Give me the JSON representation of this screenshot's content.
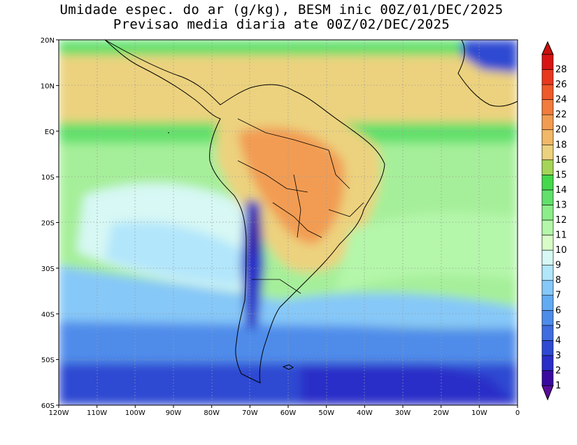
{
  "title": {
    "line1": "Umidade espec. do ar (g/kg), BESM inic 00Z/01/DEC/2025",
    "line2": "Previsao media diaria ate 00Z/02/DEC/2025"
  },
  "map": {
    "lon_labels": [
      "120W",
      "110W",
      "100W",
      "90W",
      "80W",
      "70W",
      "60W",
      "50W",
      "40W",
      "30W",
      "20W",
      "10W",
      "0"
    ],
    "lat_labels": [
      "20N",
      "10N",
      "EQ",
      "10S",
      "20S",
      "30S",
      "40S",
      "50S",
      "60S"
    ],
    "lon_range": [
      -120,
      0
    ],
    "lat_range": [
      -60,
      20
    ],
    "grid": "dotted"
  },
  "colorbar": {
    "labels": [
      "1",
      "2",
      "3",
      "4",
      "5",
      "6",
      "7",
      "8",
      "9",
      "10",
      "11",
      "12",
      "13",
      "14",
      "15",
      "16",
      "18",
      "20",
      "22",
      "24",
      "26",
      "28"
    ],
    "colors": [
      "#3a0aa0",
      "#2a2ec8",
      "#2f49d2",
      "#3f6ce0",
      "#4f8cea",
      "#62abf2",
      "#86c8f8",
      "#b2e6fb",
      "#d7f8f4",
      "#d8fcc8",
      "#b4f6aa",
      "#8cee8a",
      "#62e06c",
      "#44d84c",
      "#a5d558",
      "#ecd27e",
      "#f0b868",
      "#f29c52",
      "#f17c3c",
      "#ef5a2a",
      "#e8381e",
      "#d81414"
    ],
    "under_color": "#5a0c9c",
    "over_color": "#c8100c"
  }
}
